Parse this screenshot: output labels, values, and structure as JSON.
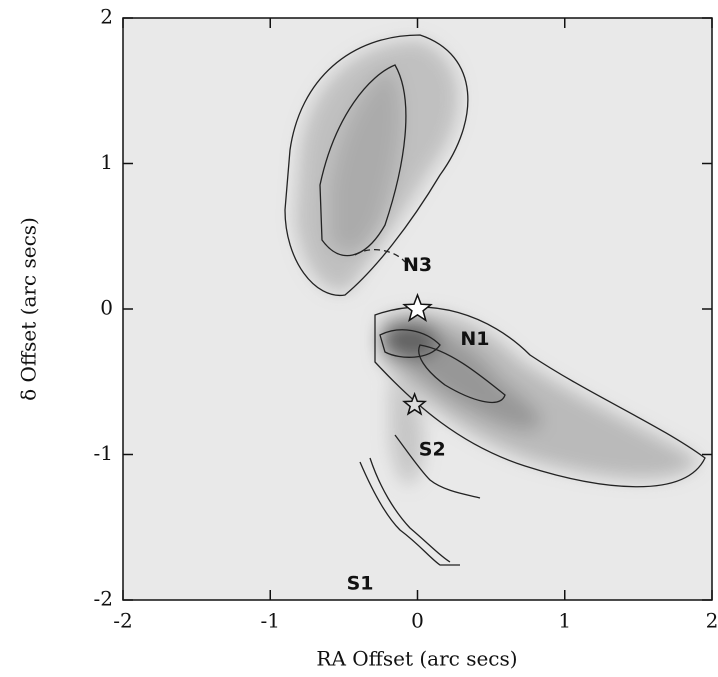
{
  "chart_data": {
    "type": "contour",
    "xlabel": "RA Offset (arc secs)",
    "ylabel": "δ Offset (arc secs)",
    "xlim": [
      -2,
      2
    ],
    "ylim": [
      -2,
      2
    ],
    "xticks": [
      -2,
      -1,
      0,
      1,
      2
    ],
    "yticks": [
      -2,
      -1,
      0,
      1,
      2
    ],
    "annotations": [
      {
        "text": "N3",
        "x": 0.0,
        "y": 0.3
      },
      {
        "text": "N1",
        "x": 0.39,
        "y": -0.21
      },
      {
        "text": "S2",
        "x": 0.1,
        "y": -0.97
      },
      {
        "text": "S1",
        "x": -0.39,
        "y": -1.89
      }
    ],
    "stars": {
      "x": [
        0.0,
        -0.02
      ],
      "y": [
        0.0,
        -0.66
      ]
    }
  }
}
